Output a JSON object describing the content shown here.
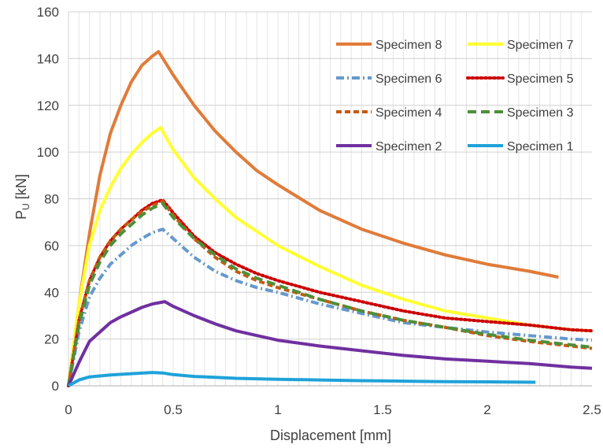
{
  "chart_data": {
    "type": "line",
    "title": "",
    "xlabel": "Displacement [mm]",
    "ylabel": {
      "main": "P",
      "sub": "U",
      "rest": " [kN]"
    },
    "xlim": [
      0,
      2.5
    ],
    "ylim": [
      0,
      160
    ],
    "x_ticks": [
      "0",
      "0.5",
      "1",
      "1.5",
      "2",
      "2.5"
    ],
    "y_ticks": [
      "0",
      "20",
      "40",
      "60",
      "80",
      "100",
      "120",
      "140",
      "160"
    ],
    "grid": true,
    "legend_placement": "top-right",
    "series": [
      {
        "name": "Specimen 8",
        "color": "#E07B39",
        "dash": "solid",
        "points": [
          [
            0,
            0
          ],
          [
            0.05,
            35
          ],
          [
            0.1,
            65
          ],
          [
            0.15,
            90
          ],
          [
            0.2,
            108
          ],
          [
            0.25,
            120
          ],
          [
            0.3,
            130
          ],
          [
            0.35,
            137
          ],
          [
            0.4,
            141
          ],
          [
            0.43,
            143
          ],
          [
            0.5,
            133
          ],
          [
            0.6,
            120
          ],
          [
            0.7,
            109
          ],
          [
            0.8,
            100
          ],
          [
            0.9,
            92
          ],
          [
            1.0,
            86
          ],
          [
            1.2,
            75
          ],
          [
            1.4,
            67
          ],
          [
            1.6,
            61
          ],
          [
            1.8,
            56
          ],
          [
            2.0,
            52
          ],
          [
            2.2,
            49
          ],
          [
            2.34,
            46.5
          ]
        ]
      },
      {
        "name": "Specimen 7",
        "color": "#FFFF33",
        "dash": "solid",
        "points": [
          [
            0,
            0
          ],
          [
            0.05,
            35
          ],
          [
            0.1,
            60
          ],
          [
            0.15,
            75
          ],
          [
            0.2,
            85
          ],
          [
            0.25,
            93
          ],
          [
            0.3,
            99
          ],
          [
            0.35,
            104
          ],
          [
            0.4,
            108
          ],
          [
            0.44,
            110.5
          ],
          [
            0.5,
            101
          ],
          [
            0.6,
            89
          ],
          [
            0.7,
            80
          ],
          [
            0.8,
            72
          ],
          [
            0.9,
            66
          ],
          [
            1.0,
            60
          ],
          [
            1.2,
            51
          ],
          [
            1.4,
            43
          ],
          [
            1.6,
            37
          ],
          [
            1.8,
            32
          ],
          [
            2.0,
            29
          ],
          [
            2.2,
            26
          ],
          [
            2.4,
            24
          ],
          [
            2.5,
            23.5
          ]
        ]
      },
      {
        "name": "Specimen 6",
        "color": "#6699CC",
        "dash": "dashdot",
        "points": [
          [
            0,
            0
          ],
          [
            0.05,
            23
          ],
          [
            0.1,
            38
          ],
          [
            0.15,
            46
          ],
          [
            0.2,
            52
          ],
          [
            0.25,
            56
          ],
          [
            0.3,
            60
          ],
          [
            0.35,
            63
          ],
          [
            0.4,
            65.5
          ],
          [
            0.45,
            67
          ],
          [
            0.5,
            63
          ],
          [
            0.6,
            55
          ],
          [
            0.7,
            49
          ],
          [
            0.8,
            45
          ],
          [
            0.9,
            42
          ],
          [
            1.0,
            40
          ],
          [
            1.2,
            35
          ],
          [
            1.4,
            31
          ],
          [
            1.6,
            27
          ],
          [
            1.8,
            25
          ],
          [
            2.0,
            23
          ],
          [
            2.2,
            21.5
          ],
          [
            2.4,
            20
          ],
          [
            2.5,
            19.5
          ]
        ]
      },
      {
        "name": "Specimen 5",
        "color": "#CC0000",
        "dash": "dotted",
        "points": [
          [
            0,
            0
          ],
          [
            0.05,
            28
          ],
          [
            0.1,
            45
          ],
          [
            0.15,
            55
          ],
          [
            0.2,
            62
          ],
          [
            0.25,
            67
          ],
          [
            0.3,
            71
          ],
          [
            0.35,
            75
          ],
          [
            0.4,
            78
          ],
          [
            0.45,
            79.5
          ],
          [
            0.5,
            74
          ],
          [
            0.6,
            64
          ],
          [
            0.7,
            57
          ],
          [
            0.8,
            52
          ],
          [
            0.9,
            48
          ],
          [
            1.0,
            45
          ],
          [
            1.2,
            40
          ],
          [
            1.4,
            36
          ],
          [
            1.6,
            32
          ],
          [
            1.8,
            29
          ],
          [
            2.0,
            27.5
          ],
          [
            2.2,
            26
          ],
          [
            2.4,
            24
          ],
          [
            2.5,
            23.5
          ]
        ]
      },
      {
        "name": "Specimen 4",
        "color": "#C55A11",
        "dash": "dashed",
        "points": [
          [
            0,
            0
          ],
          [
            0.05,
            28
          ],
          [
            0.1,
            45
          ],
          [
            0.15,
            55
          ],
          [
            0.2,
            62
          ],
          [
            0.25,
            67
          ],
          [
            0.3,
            71
          ],
          [
            0.35,
            74.5
          ],
          [
            0.4,
            77
          ],
          [
            0.45,
            79
          ],
          [
            0.5,
            73
          ],
          [
            0.6,
            63
          ],
          [
            0.7,
            55
          ],
          [
            0.8,
            49
          ],
          [
            0.9,
            45
          ],
          [
            1.0,
            42
          ],
          [
            1.2,
            37
          ],
          [
            1.4,
            32
          ],
          [
            1.6,
            28
          ],
          [
            1.8,
            25
          ],
          [
            2.0,
            21.5
          ],
          [
            2.2,
            19
          ],
          [
            2.4,
            17
          ],
          [
            2.5,
            16
          ]
        ]
      },
      {
        "name": "Specimen 3",
        "color": "#4E8F3A",
        "dash": "longdash",
        "points": [
          [
            0,
            0
          ],
          [
            0.05,
            26
          ],
          [
            0.1,
            43
          ],
          [
            0.15,
            53
          ],
          [
            0.2,
            60
          ],
          [
            0.25,
            65
          ],
          [
            0.3,
            69
          ],
          [
            0.35,
            73
          ],
          [
            0.4,
            76
          ],
          [
            0.45,
            78
          ],
          [
            0.5,
            72
          ],
          [
            0.6,
            63
          ],
          [
            0.7,
            56
          ],
          [
            0.8,
            50
          ],
          [
            0.9,
            46
          ],
          [
            1.0,
            43
          ],
          [
            1.2,
            37
          ],
          [
            1.4,
            32
          ],
          [
            1.6,
            28
          ],
          [
            1.8,
            25
          ],
          [
            2.0,
            22
          ],
          [
            2.2,
            19.5
          ],
          [
            2.4,
            17.5
          ],
          [
            2.5,
            16.5
          ]
        ]
      },
      {
        "name": "Specimen 2",
        "color": "#7030A0",
        "dash": "solid",
        "points": [
          [
            0,
            0
          ],
          [
            0.05,
            10
          ],
          [
            0.1,
            19
          ],
          [
            0.15,
            23
          ],
          [
            0.2,
            27
          ],
          [
            0.25,
            29.5
          ],
          [
            0.3,
            31.5
          ],
          [
            0.35,
            33.5
          ],
          [
            0.4,
            35
          ],
          [
            0.46,
            36
          ],
          [
            0.5,
            34
          ],
          [
            0.6,
            30
          ],
          [
            0.7,
            26.5
          ],
          [
            0.8,
            23.5
          ],
          [
            0.9,
            21.5
          ],
          [
            1.0,
            19.5
          ],
          [
            1.2,
            17
          ],
          [
            1.4,
            15
          ],
          [
            1.6,
            13
          ],
          [
            1.8,
            11.5
          ],
          [
            2.0,
            10.5
          ],
          [
            2.2,
            9.5
          ],
          [
            2.4,
            8
          ],
          [
            2.5,
            7.5
          ]
        ]
      },
      {
        "name": "Specimen 1",
        "color": "#1FA2D9",
        "dash": "solid",
        "points": [
          [
            0,
            0
          ],
          [
            0.05,
            2.5
          ],
          [
            0.1,
            3.8
          ],
          [
            0.2,
            4.6
          ],
          [
            0.3,
            5.2
          ],
          [
            0.4,
            5.7
          ],
          [
            0.45,
            5.5
          ],
          [
            0.5,
            4.8
          ],
          [
            0.6,
            4.0
          ],
          [
            0.8,
            3.2
          ],
          [
            1.0,
            2.8
          ],
          [
            1.2,
            2.5
          ],
          [
            1.4,
            2.2
          ],
          [
            1.6,
            2.0
          ],
          [
            1.8,
            1.8
          ],
          [
            2.0,
            1.7
          ],
          [
            2.23,
            1.5
          ]
        ]
      }
    ]
  }
}
